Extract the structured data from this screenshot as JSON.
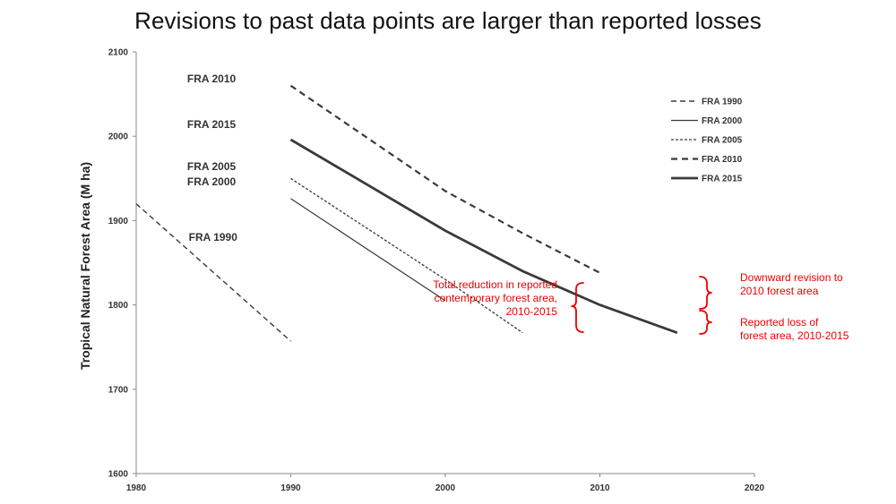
{
  "chart_data": {
    "type": "line",
    "title": "Revisions to past data points are larger than reported losses",
    "ylabel": "Tropical Natural Forest Area (M ha)",
    "xlabel": "",
    "xlim": [
      1980,
      2020
    ],
    "ylim": [
      1600,
      2100
    ],
    "x_ticks": [
      "1980",
      "1990",
      "2000",
      "2010",
      "2020"
    ],
    "y_ticks": [
      "1600",
      "1700",
      "1800",
      "1900",
      "2000",
      "2100"
    ],
    "legend_position": "top-right",
    "series": [
      {
        "name": "FRA 1990",
        "style": "dashed-thin",
        "x": [
          1980,
          1990
        ],
        "y": [
          1920,
          1757
        ]
      },
      {
        "name": "FRA 2000",
        "style": "solid-thin",
        "x": [
          1990,
          2000
        ],
        "y": [
          1926,
          1805
        ]
      },
      {
        "name": "FRA 2005",
        "style": "dotted",
        "x": [
          1990,
          2000,
          2005
        ],
        "y": [
          1950,
          1830,
          1767
        ]
      },
      {
        "name": "FRA 2010",
        "style": "dashed-thick",
        "x": [
          1990,
          2000,
          2005,
          2010
        ],
        "y": [
          2060,
          1935,
          1885,
          1838
        ]
      },
      {
        "name": "FRA 2015",
        "style": "solid-thick",
        "x": [
          1990,
          2000,
          2005,
          2010,
          2015
        ],
        "y": [
          1996,
          1888,
          1840,
          1800,
          1767
        ]
      }
    ],
    "series_labels": [
      {
        "text": "FRA 2010",
        "x": 1983.3,
        "y": 2064
      },
      {
        "text": "FRA 2015",
        "x": 1983.3,
        "y": 2010
      },
      {
        "text": "FRA 2005",
        "x": 1983.3,
        "y": 1960
      },
      {
        "text": "FRA 2000",
        "x": 1983.3,
        "y": 1942
      },
      {
        "text": "FRA 1990",
        "x": 1983.4,
        "y": 1876
      }
    ],
    "annotations": {
      "total_reduction": [
        "Total reduction in reported",
        "contemporary forest area,",
        "2010-2015"
      ],
      "downward_revision": [
        "Downward revision to",
        "2010 forest area"
      ],
      "reported_loss": [
        "Reported loss of",
        "forest area, 2010-2015"
      ]
    },
    "colors": {
      "series": "#3a3a3a",
      "annotation": "#ee0000",
      "axis": "#888888"
    }
  }
}
